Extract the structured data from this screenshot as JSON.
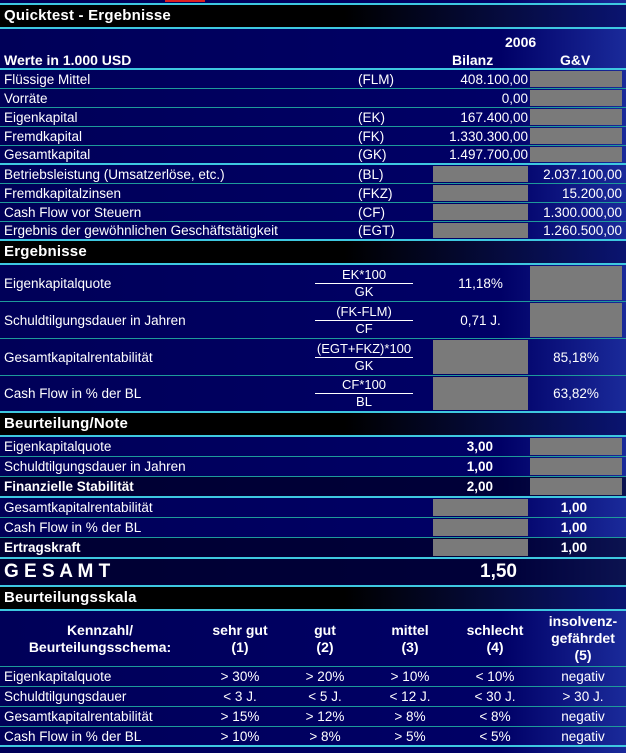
{
  "title": "Quicktest - Ergebnisse",
  "year": "2006",
  "units_label": "Werte in 1.000 USD",
  "col_bilanz": "Bilanz",
  "col_gv": "G&V",
  "colors": {
    "background": "#000066",
    "gray_cell": "#7a7a7a",
    "line": "#3ec8e0"
  },
  "inputs": [
    {
      "label": "Flüssige Mittel",
      "abbr": "(FLM)",
      "bilanz": "408.100,00",
      "gv": null
    },
    {
      "label": "Vorräte",
      "abbr": "",
      "bilanz": "0,00",
      "gv": null
    },
    {
      "label": "Eigenkapital",
      "abbr": "(EK)",
      "bilanz": "167.400,00",
      "gv": null
    },
    {
      "label": "Fremdkapital",
      "abbr": "(FK)",
      "bilanz": "1.330.300,00",
      "gv": null
    },
    {
      "label": "Gesamtkapital",
      "abbr": "(GK)",
      "bilanz": "1.497.700,00",
      "gv": null
    },
    {
      "label": "Betriebsleistung (Umsatzerlöse, etc.)",
      "abbr": "(BL)",
      "bilanz": null,
      "gv": "2.037.100,00"
    },
    {
      "label": "Fremdkapitalzinsen",
      "abbr": "(FKZ)",
      "bilanz": null,
      "gv": "15.200,00"
    },
    {
      "label": "Cash Flow vor Steuern",
      "abbr": "(CF)",
      "bilanz": null,
      "gv": "1.300.000,00"
    },
    {
      "label": "Ergebnis der gewöhnlichen Geschäftstätigkeit",
      "abbr": "(EGT)",
      "bilanz": null,
      "gv": "1.260.500,00"
    }
  ],
  "results_title": "Ergebnisse",
  "results": [
    {
      "label": "Eigenkapitalquote",
      "num": "EK*100",
      "den": "GK",
      "bilanz": "11,18%",
      "gv": null
    },
    {
      "label": "Schuldtilgungsdauer in Jahren",
      "num": "(FK-FLM)",
      "den": "CF",
      "bilanz": "0,71 J.",
      "gv": null
    },
    {
      "label": "Gesamtkapitalrentabilität",
      "num": "(EGT+FKZ)*100",
      "den": "GK",
      "bilanz": null,
      "gv": "85,18%"
    },
    {
      "label": "Cash Flow in % der BL",
      "num": "CF*100",
      "den": "BL",
      "bilanz": null,
      "gv": "63,82%"
    }
  ],
  "grading_title": "Beurteilung/Note",
  "grading": [
    {
      "label": "Eigenkapitalquote",
      "bilanz": "3,00",
      "gv": null,
      "bold": false
    },
    {
      "label": "Schuldtilgungsdauer in Jahren",
      "bilanz": "1,00",
      "gv": null,
      "bold": false
    },
    {
      "label": "Finanzielle Stabilität",
      "bilanz": "2,00",
      "gv": null,
      "bold": true
    },
    {
      "label": "Gesamtkapitalrentabilität",
      "bilanz": null,
      "gv": "1,00",
      "bold": false
    },
    {
      "label": "Cash Flow in % der BL",
      "bilanz": null,
      "gv": "1,00",
      "bold": false
    },
    {
      "label": "Ertragskraft",
      "bilanz": null,
      "gv": "1,00",
      "bold": true
    }
  ],
  "total": {
    "label": "G E S A M T",
    "value": "1,50"
  },
  "scale_title": "Beurteilungsskala",
  "scale_headers": [
    "Kennzahl/\nBeurteilungsschema:",
    "sehr gut\n(1)",
    "gut\n(2)",
    "mittel\n(3)",
    "schlecht\n(4)",
    "insolvenz-\ngefährdet\n(5)"
  ],
  "scale_rows": [
    [
      "Eigenkapitalquote",
      "> 30%",
      "> 20%",
      "> 10%",
      "< 10%",
      "negativ"
    ],
    [
      "Schuldtilgungsdauer",
      "< 3 J.",
      "< 5 J.",
      "< 12 J.",
      "< 30 J.",
      "> 30 J."
    ],
    [
      "Gesamtkapitalrentabilität",
      "> 15%",
      "> 12%",
      "> 8%",
      "< 8%",
      "negativ"
    ],
    [
      "Cash Flow in % der BL",
      "> 10%",
      "> 8%",
      "> 5%",
      "< 5%",
      "negativ"
    ]
  ]
}
